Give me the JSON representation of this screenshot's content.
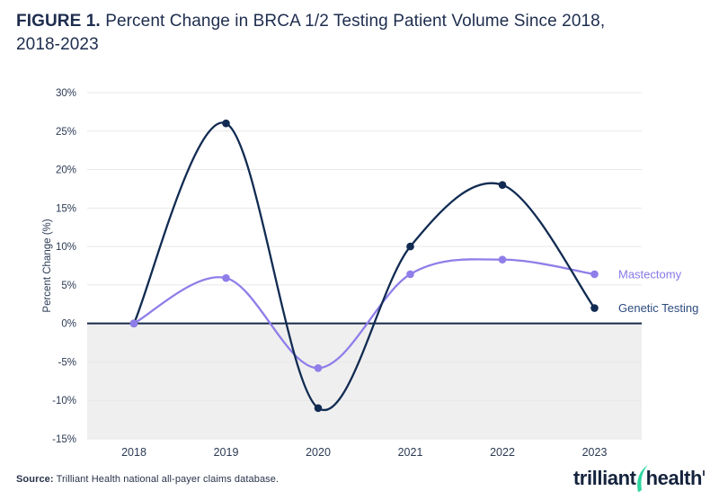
{
  "figure": {
    "label": "FIGURE 1.",
    "title_line1": " Percent Change in BRCA 1/2 Testing Patient Volume Since 2018,",
    "title_line2": "2018-2023"
  },
  "source": {
    "label": "Source:",
    "text": " Trilliant Health national all-payer claims database."
  },
  "logo": {
    "word1": "trilliant",
    "word2": "health",
    "navy": "#14233C",
    "green": "#2FD6A0"
  },
  "colors": {
    "title_navy": "#1E2D4E",
    "tick_text": "#2B3A54",
    "gridline": "#E7E7E7",
    "shaded_gray": "#EFEFEF",
    "zero_line": "#16294A",
    "genetic_testing_navy": "#112B52",
    "mastectomy_purple": "#8F7EE9"
  },
  "chart_data": {
    "type": "line",
    "title": "FIGURE 1. Percent Change in BRCA 1/2 Testing Patient Volume Since 2018, 2018-2023",
    "categories": [
      "2018",
      "2019",
      "2020",
      "2021",
      "2022",
      "2023"
    ],
    "series": [
      {
        "name": "Genetic Testing",
        "color": "#112B52",
        "label_color": "#2D4B7E",
        "values": [
          0,
          26,
          -11,
          10,
          18,
          2
        ]
      },
      {
        "name": "Mastectomy",
        "color": "#8F7EE9",
        "label_color": "#8678E8",
        "values": [
          0,
          5.9,
          -5.8,
          6.4,
          8.3,
          6.4
        ]
      }
    ],
    "xlabel": "",
    "ylabel": "Percent Change (%)",
    "ylim": [
      -15,
      30
    ],
    "y_ticks": [
      {
        "value": 30,
        "label": "30%"
      },
      {
        "value": 25,
        "label": "25%"
      },
      {
        "value": 20,
        "label": "20%"
      },
      {
        "value": 15,
        "label": "15%"
      },
      {
        "value": 10,
        "label": "10%"
      },
      {
        "value": 5,
        "label": "5%"
      },
      {
        "value": 0,
        "label": "0%"
      },
      {
        "value": -5,
        "label": "-5%"
      },
      {
        "value": -10,
        "label": "-10%"
      },
      {
        "value": -15,
        "label": "-15%"
      }
    ],
    "grid": "horizontal",
    "legend_position": "end-of-line-labels",
    "curve": "smooth-spline",
    "shaded_region": {
      "from": 0,
      "to": -15,
      "color": "#EFEFEF"
    }
  }
}
